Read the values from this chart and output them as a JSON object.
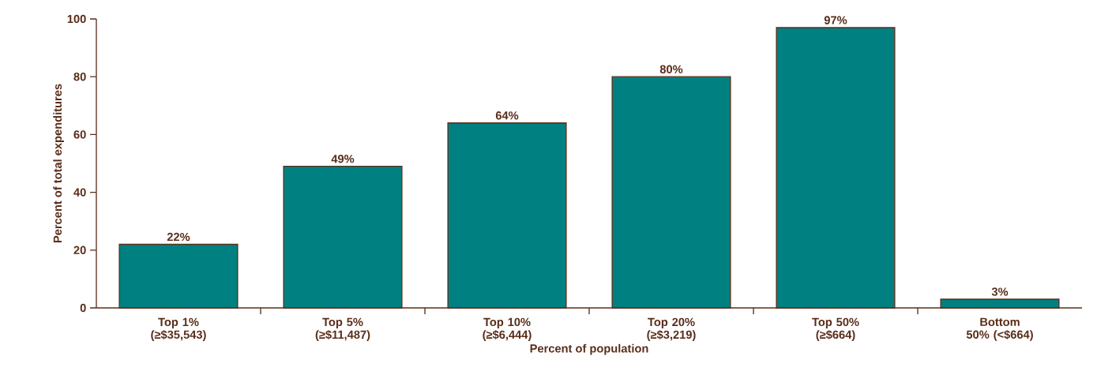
{
  "chart_data": {
    "type": "bar",
    "xlabel": "Percent of population",
    "ylabel": "Percent of total expenditures",
    "categories": [
      "Top 1% (≥$35,543)",
      "Top 5% (≥$11,487)",
      "Top 10% (≥$6,444)",
      "Top 20% (≥$3,219)",
      "Top 50% (≥$664)",
      "Bottom 50% (<$664)"
    ],
    "values": [
      22,
      49,
      64,
      80,
      97,
      3
    ],
    "value_labels": [
      "22%",
      "49%",
      "64%",
      "80%",
      "97%",
      "3%"
    ],
    "color": "#008080",
    "ylim": [
      0,
      100
    ],
    "yticks": [
      0,
      20,
      40,
      60,
      80,
      100
    ],
    "grid": false
  }
}
